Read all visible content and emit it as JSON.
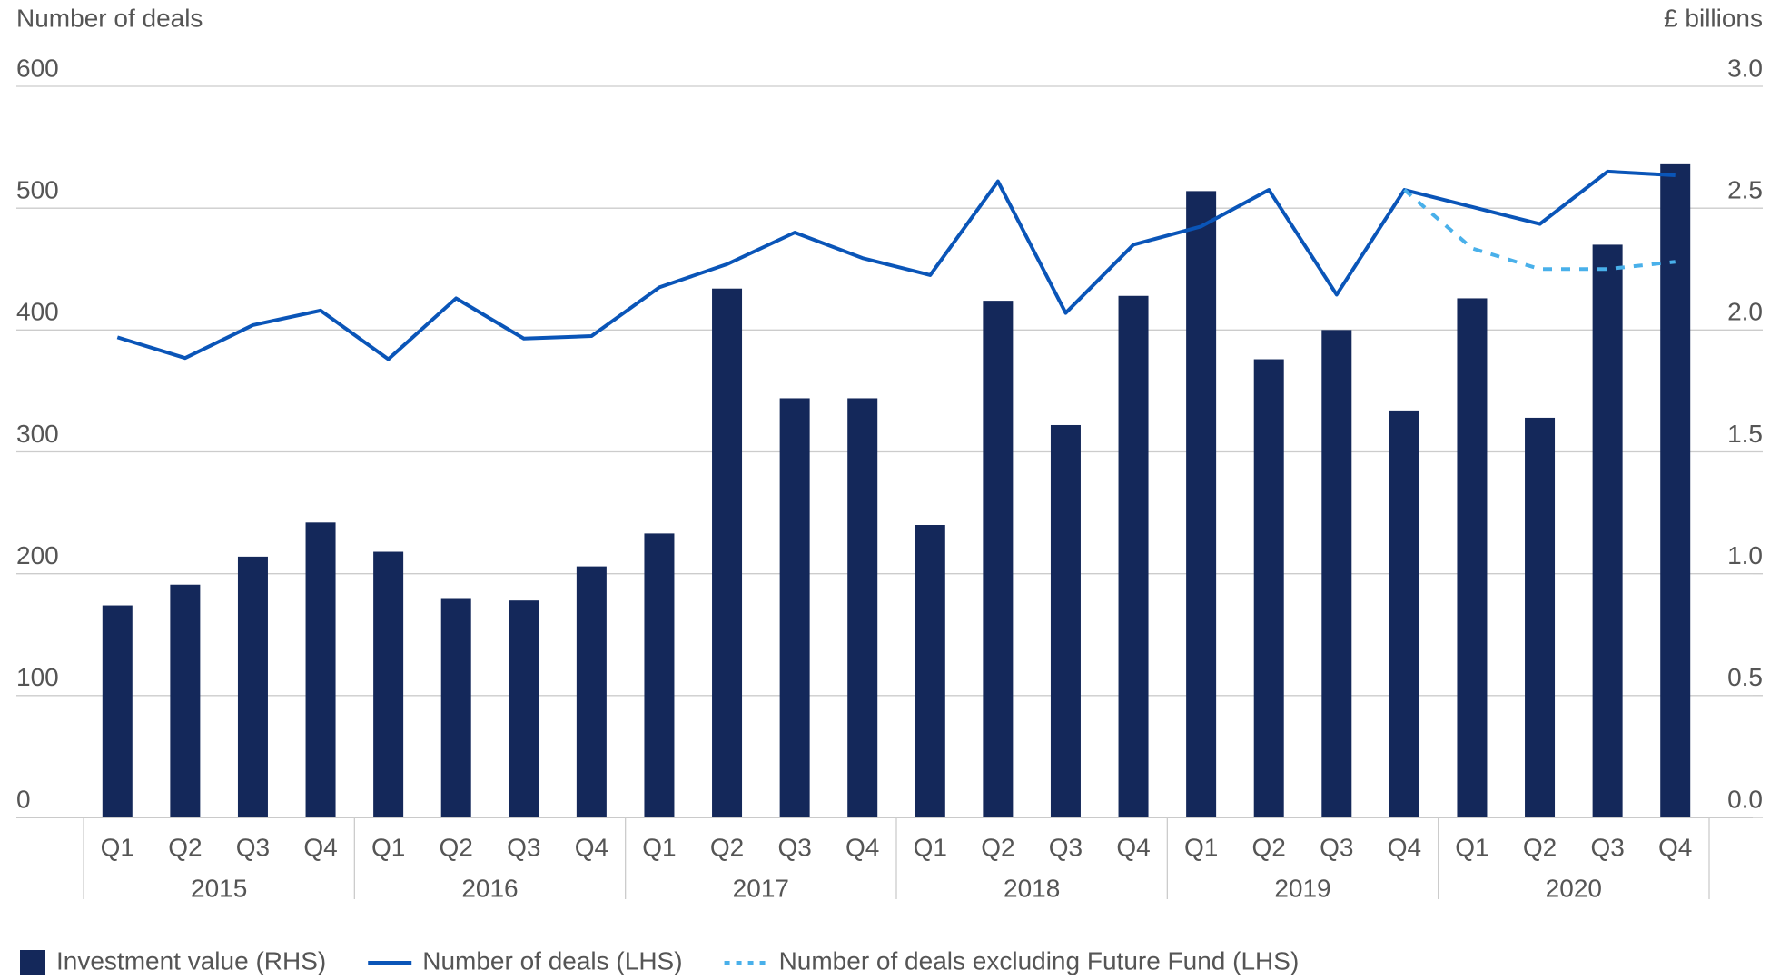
{
  "chart_data": {
    "type": "bar_line",
    "y_axis_label": "Number of deals",
    "y2_axis_label": "£ billions",
    "categories": [
      "Q1",
      "Q2",
      "Q3",
      "Q4",
      "Q1",
      "Q2",
      "Q3",
      "Q4",
      "Q1",
      "Q2",
      "Q3",
      "Q4",
      "Q1",
      "Q2",
      "Q3",
      "Q4",
      "Q1",
      "Q2",
      "Q3",
      "Q4",
      "Q1",
      "Q2",
      "Q3",
      "Q4"
    ],
    "groups": [
      "2015",
      "2016",
      "2017",
      "2018",
      "2019",
      "2020"
    ],
    "ylim": [
      0,
      600
    ],
    "yticks": [
      0,
      100,
      200,
      300,
      400,
      500,
      600
    ],
    "y2lim": [
      0,
      3
    ],
    "y2ticks": [
      {
        "value": 0,
        "label": "0.0"
      },
      0.5,
      {
        "value": 1,
        "label": "1.0"
      },
      1.5,
      {
        "value": 2,
        "label": "2.0"
      },
      2.5,
      {
        "value": 3,
        "label": "3.0"
      }
    ],
    "grid": true,
    "series": [
      {
        "name": "Investment value (RHS)",
        "type": "bar",
        "axis": "y2",
        "color": "#14285a",
        "values": [
          0.87,
          0.955,
          1.07,
          1.21,
          1.09,
          0.9,
          0.89,
          1.03,
          1.165,
          2.17,
          1.72,
          1.72,
          1.2,
          2.12,
          1.61,
          2.14,
          2.57,
          1.88,
          2.0,
          1.67,
          2.13,
          1.64,
          2.35,
          2.68
        ]
      },
      {
        "name": "Number of deals (LHS)",
        "type": "line",
        "axis": "y",
        "color": "#0a55b8",
        "values": [
          394,
          377,
          404,
          416,
          376,
          426,
          393,
          395,
          435,
          454,
          480,
          459,
          445,
          522,
          414,
          470,
          485,
          515,
          429,
          515,
          501,
          487,
          530,
          527
        ]
      },
      {
        "name": "Number of deals excluding Future Fund (LHS)",
        "type": "line",
        "axis": "y",
        "dashed": true,
        "color": "#49b0ea",
        "values": [
          null,
          null,
          null,
          null,
          null,
          null,
          null,
          null,
          null,
          null,
          null,
          null,
          null,
          null,
          null,
          null,
          null,
          null,
          null,
          515,
          467,
          450,
          450,
          456
        ]
      }
    ]
  }
}
